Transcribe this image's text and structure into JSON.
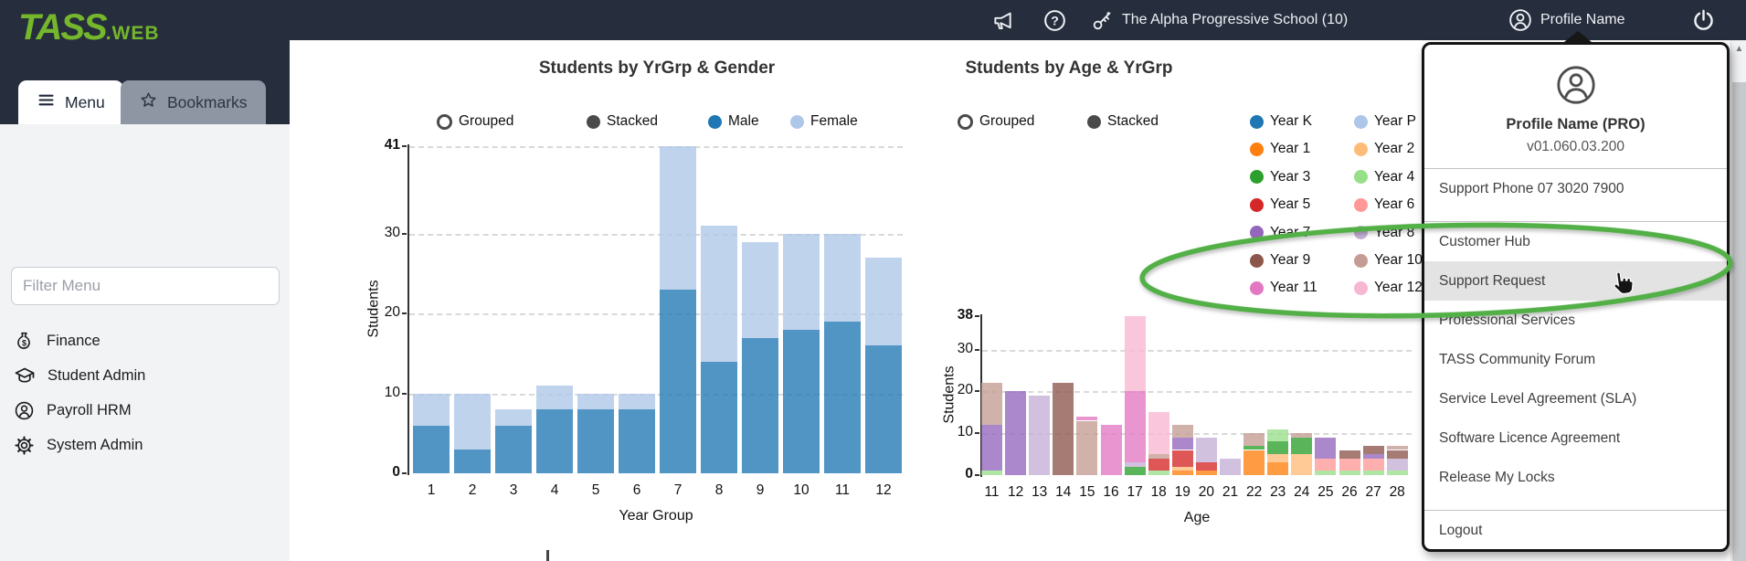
{
  "topbar": {
    "logo": {
      "primary": "TASS",
      "suffix": ".WEB"
    },
    "school_switcher": {
      "label": "The Alpha Progressive School (10)"
    },
    "profile": {
      "label": "Profile Name"
    }
  },
  "sidebar": {
    "tabs": [
      {
        "label": "Menu",
        "active": true
      },
      {
        "label": "Bookmarks",
        "active": false
      }
    ],
    "filter": {
      "placeholder": "Filter Menu"
    },
    "items": [
      {
        "label": "Finance",
        "icon": "money-bag-icon"
      },
      {
        "label": "Student Admin",
        "icon": "graduation-cap-icon"
      },
      {
        "label": "Payroll HRM",
        "icon": "person-badge-icon"
      },
      {
        "label": "System Admin",
        "icon": "gear-icon"
      }
    ]
  },
  "profile_menu": {
    "name": "Profile Name (PRO)",
    "version": "v01.060.03.200",
    "sections": [
      {
        "items": [
          {
            "label": "Support Phone 07 3020 7900"
          }
        ]
      },
      {
        "items": [
          {
            "label": "Customer Hub"
          },
          {
            "label": "Support Request",
            "highlighted": true
          },
          {
            "label": "Professional Services"
          },
          {
            "label": "TASS Community Forum"
          },
          {
            "label": "Service Level Agreement (SLA)"
          },
          {
            "label": "Software Licence Agreement"
          },
          {
            "label": "Release My Locks"
          }
        ]
      },
      {
        "items": [
          {
            "label": "Logout"
          }
        ]
      }
    ]
  },
  "chart_data": [
    {
      "type": "bar",
      "stacked": true,
      "title": "Students by YrGrp & Gender",
      "mode_options": [
        "Grouped",
        "Stacked"
      ],
      "mode_selected": "Stacked",
      "categories": [
        "1",
        "2",
        "3",
        "4",
        "5",
        "6",
        "7",
        "8",
        "9",
        "10",
        "11",
        "12"
      ],
      "series": [
        {
          "name": "Male",
          "color": "#1f77b4",
          "values": [
            6,
            3,
            6,
            8,
            8,
            8,
            23,
            14,
            17,
            18,
            19,
            16
          ]
        },
        {
          "name": "Female",
          "color": "#aec7e8",
          "values": [
            4,
            7,
            2,
            3,
            2,
            2,
            18,
            17,
            12,
            12,
            11,
            11
          ]
        }
      ],
      "xlabel": "Year Group",
      "ylabel": "Students",
      "ylim": [
        0,
        41
      ],
      "yticks": [
        0,
        10,
        20,
        30,
        41
      ],
      "gridlines": [
        10,
        20,
        30,
        41
      ],
      "grid": "dashed"
    },
    {
      "type": "bar",
      "stacked": true,
      "title": "Students by Age & YrGrp",
      "mode_options": [
        "Grouped",
        "Stacked"
      ],
      "mode_selected": "Stacked",
      "legend": [
        {
          "name": "Year K",
          "color": "#1f77b4"
        },
        {
          "name": "Year P",
          "color": "#aec7e8"
        },
        {
          "name": "Year 1",
          "color": "#ff7f0e"
        },
        {
          "name": "Year 2",
          "color": "#ffbb78"
        },
        {
          "name": "Year 3",
          "color": "#2ca02c"
        },
        {
          "name": "Year 4",
          "color": "#98df8a"
        },
        {
          "name": "Year 5",
          "color": "#d62728"
        },
        {
          "name": "Year 6",
          "color": "#ff9896"
        },
        {
          "name": "Year 7",
          "color": "#9467bd"
        },
        {
          "name": "Year 8",
          "color": "#c5b0d5"
        },
        {
          "name": "Year 9",
          "color": "#8c564b"
        },
        {
          "name": "Year 10",
          "color": "#c49c94"
        },
        {
          "name": "Year 11",
          "color": "#e377c2"
        },
        {
          "name": "Year 12",
          "color": "#f7b6d2"
        }
      ],
      "categories": [
        "11",
        "12",
        "13",
        "14",
        "15",
        "16",
        "17",
        "18",
        "19",
        "20",
        "21",
        "22",
        "23",
        "24",
        "25",
        "26",
        "27",
        "28"
      ],
      "bars": [
        {
          "age": "11",
          "segments": [
            {
              "year": "Year 4",
              "students": 1
            },
            {
              "year": "Year 7",
              "students": 11
            },
            {
              "year": "Year 10",
              "students": 10
            }
          ]
        },
        {
          "age": "12",
          "segments": [
            {
              "year": "Year 7",
              "students": 20
            }
          ]
        },
        {
          "age": "13",
          "segments": [
            {
              "year": "Year 8",
              "students": 19
            }
          ]
        },
        {
          "age": "14",
          "segments": [
            {
              "year": "Year 9",
              "students": 22
            }
          ]
        },
        {
          "age": "15",
          "segments": [
            {
              "year": "Year 10",
              "students": 13
            },
            {
              "year": "Year 11",
              "students": 1
            }
          ]
        },
        {
          "age": "16",
          "segments": [
            {
              "year": "Year 11",
              "students": 12
            }
          ]
        },
        {
          "age": "17",
          "segments": [
            {
              "year": "Year 3",
              "students": 2
            },
            {
              "year": "Year 8",
              "students": 1
            },
            {
              "year": "Year 11",
              "students": 17
            },
            {
              "year": "Year 12",
              "students": 18
            }
          ]
        },
        {
          "age": "18",
          "segments": [
            {
              "year": "Year 4",
              "students": 1
            },
            {
              "year": "Year 5",
              "students": 3
            },
            {
              "year": "Year 10",
              "students": 1
            },
            {
              "year": "Year 12",
              "students": 10
            }
          ]
        },
        {
          "age": "19",
          "segments": [
            {
              "year": "Year 1",
              "students": 1
            },
            {
              "year": "Year 2",
              "students": 1
            },
            {
              "year": "Year 5",
              "students": 4
            },
            {
              "year": "Year 7",
              "students": 3
            },
            {
              "year": "Year 10",
              "students": 3
            }
          ]
        },
        {
          "age": "20",
          "segments": [
            {
              "year": "Year 1",
              "students": 1
            },
            {
              "year": "Year 5",
              "students": 2
            },
            {
              "year": "Year 8",
              "students": 6
            }
          ]
        },
        {
          "age": "21",
          "segments": [
            {
              "year": "Year 8",
              "students": 4
            }
          ]
        },
        {
          "age": "22",
          "segments": [
            {
              "year": "Year 1",
              "students": 6
            },
            {
              "year": "Year 3",
              "students": 1
            },
            {
              "year": "Year 10",
              "students": 3
            }
          ]
        },
        {
          "age": "23",
          "segments": [
            {
              "year": "Year 1",
              "students": 3
            },
            {
              "year": "Year 2",
              "students": 2
            },
            {
              "year": "Year 3",
              "students": 3
            },
            {
              "year": "Year 4",
              "students": 3
            }
          ]
        },
        {
          "age": "24",
          "segments": [
            {
              "year": "Year 2",
              "students": 5
            },
            {
              "year": "Year 3",
              "students": 4
            },
            {
              "year": "Year 10",
              "students": 1
            }
          ]
        },
        {
          "age": "25",
          "segments": [
            {
              "year": "Year 4",
              "students": 1
            },
            {
              "year": "Year 6",
              "students": 3
            },
            {
              "year": "Year 7",
              "students": 5
            }
          ]
        },
        {
          "age": "26",
          "segments": [
            {
              "year": "Year 4",
              "students": 1
            },
            {
              "year": "Year 6",
              "students": 3
            },
            {
              "year": "Year 9",
              "students": 2
            }
          ]
        },
        {
          "age": "27",
          "segments": [
            {
              "year": "Year 4",
              "students": 1
            },
            {
              "year": "Year 6",
              "students": 3
            },
            {
              "year": "Year 7",
              "students": 1
            },
            {
              "year": "Year 9",
              "students": 2
            }
          ]
        },
        {
          "age": "28",
          "segments": [
            {
              "year": "Year 4",
              "students": 1
            },
            {
              "year": "Year 8",
              "students": 3
            },
            {
              "year": "Year 9",
              "students": 2
            },
            {
              "year": "Year 10",
              "students": 1
            }
          ]
        }
      ],
      "xlabel": "Age",
      "ylabel": "Students",
      "ylim": [
        0,
        38
      ],
      "yticks": [
        0,
        10,
        20,
        30,
        38
      ],
      "gridlines": [
        10,
        20,
        30
      ],
      "grid": "dashed"
    }
  ],
  "colors": {
    "topbar_bg": "#262d3c",
    "logo_green": "#74b62c",
    "sidebar_bg": "#f2f3f5",
    "inactive_tab_bg": "#8e96a4",
    "highlight_row": "#e3e3e3",
    "annotation_green": "#52b046"
  }
}
